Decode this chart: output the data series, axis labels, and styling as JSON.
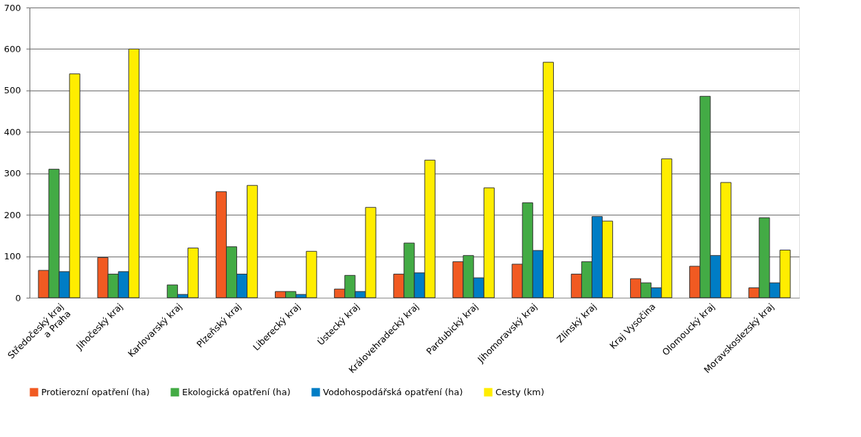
{
  "chart_data": {
    "type": "bar",
    "categories": [
      "Středočeský kraj\na Praha",
      "Jihočeský kraj",
      "Karlovarský kraj",
      "Plzeňský kraj",
      "Liberecký kraj",
      "Ústecký kraj",
      "Královehradecký kraj",
      "Pardubický kraj",
      "Jihomoravský kraj",
      "Zlínský kraj",
      "Kraj Vysočina",
      "Olomoucký kraj",
      "Moravskoslezský kraj"
    ],
    "series": [
      {
        "name": "Protierozní opatření (ha)",
        "color": "#f15a22",
        "values": [
          66,
          97,
          null,
          256,
          15,
          21,
          57,
          87,
          81,
          57,
          46,
          76,
          24
        ]
      },
      {
        "name": "Ekologická opatření (ha)",
        "color": "#43ab45",
        "values": [
          310,
          57,
          31,
          123,
          15,
          54,
          132,
          102,
          229,
          87,
          36,
          486,
          193
        ]
      },
      {
        "name": "Vodohospodářská opatření (ha)",
        "color": "#007dc5",
        "values": [
          63,
          63,
          8,
          57,
          8,
          15,
          60,
          48,
          114,
          196,
          24,
          102,
          36
        ]
      },
      {
        "name": "Cesty (km)",
        "color": "#ffed00",
        "values": [
          540,
          600,
          120,
          271,
          112,
          218,
          332,
          265,
          568,
          185,
          335,
          278,
          115
        ]
      }
    ],
    "ylim": [
      0,
      700
    ],
    "yticks": [
      0,
      100,
      200,
      300,
      400,
      500,
      600,
      700
    ],
    "grid": "y",
    "legend": "bottom"
  }
}
